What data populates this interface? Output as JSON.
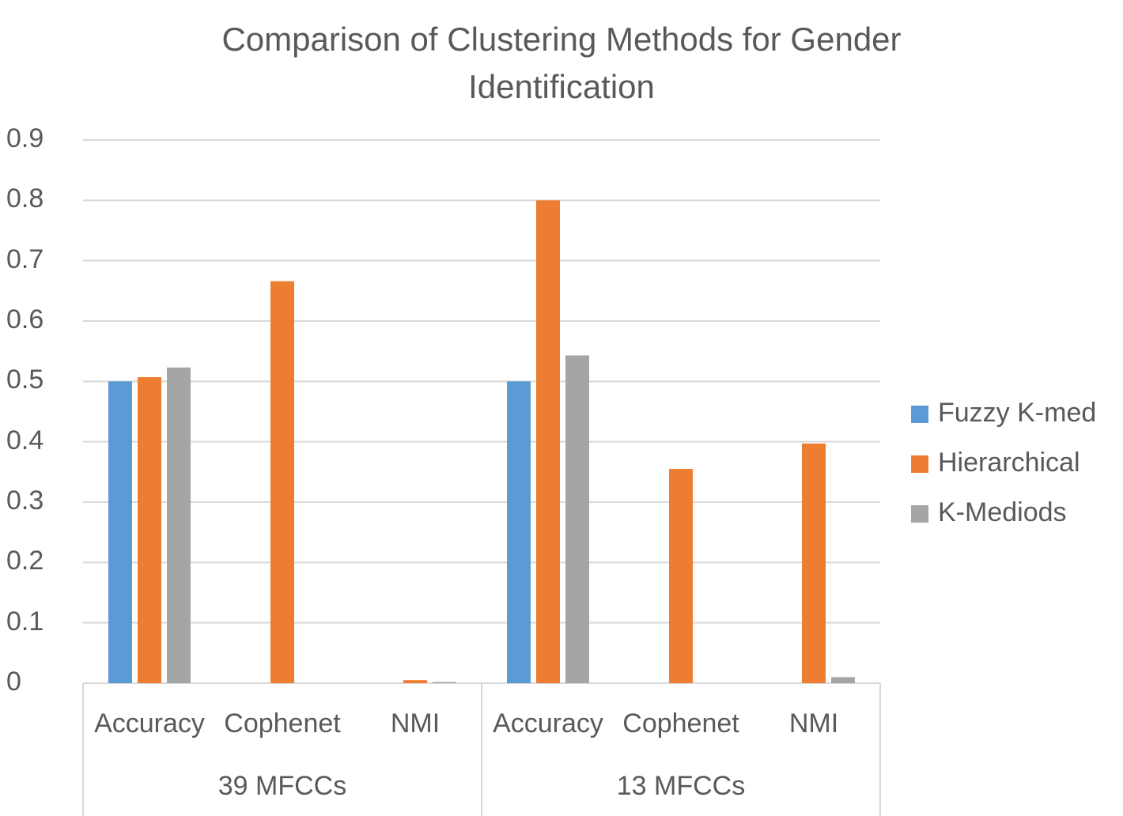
{
  "chart_data": {
    "type": "bar",
    "title": "Comparison of Clustering Methods for Gender Identification",
    "title_lines": [
      "Comparison of Clustering Methods for Gender",
      "Identification"
    ],
    "groups": [
      {
        "label": "39 MFCCs",
        "categories": [
          "Accuracy",
          "Cophenet",
          "NMI"
        ]
      },
      {
        "label": "13 MFCCs",
        "categories": [
          "Accuracy",
          "Cophenet",
          "NMI"
        ]
      }
    ],
    "series": [
      {
        "name": "Fuzzy K-med",
        "color": "#5b9bd5",
        "values": [
          0.5,
          0,
          0,
          0.5,
          0,
          0
        ]
      },
      {
        "name": "Hierarchical",
        "color": "#ed7d31",
        "values": [
          0.507,
          0.666,
          0.005,
          0.8,
          0.355,
          0.397
        ]
      },
      {
        "name": "K-Mediods",
        "color": "#a5a5a5",
        "values": [
          0.523,
          0,
          0.002,
          0.543,
          0,
          0.01
        ]
      }
    ],
    "yticks": [
      "0",
      "0.1",
      "0.2",
      "0.3",
      "0.4",
      "0.5",
      "0.6",
      "0.7",
      "0.8",
      "0.9"
    ],
    "ylim": [
      0,
      0.9
    ],
    "grid": true,
    "legend": "right"
  }
}
